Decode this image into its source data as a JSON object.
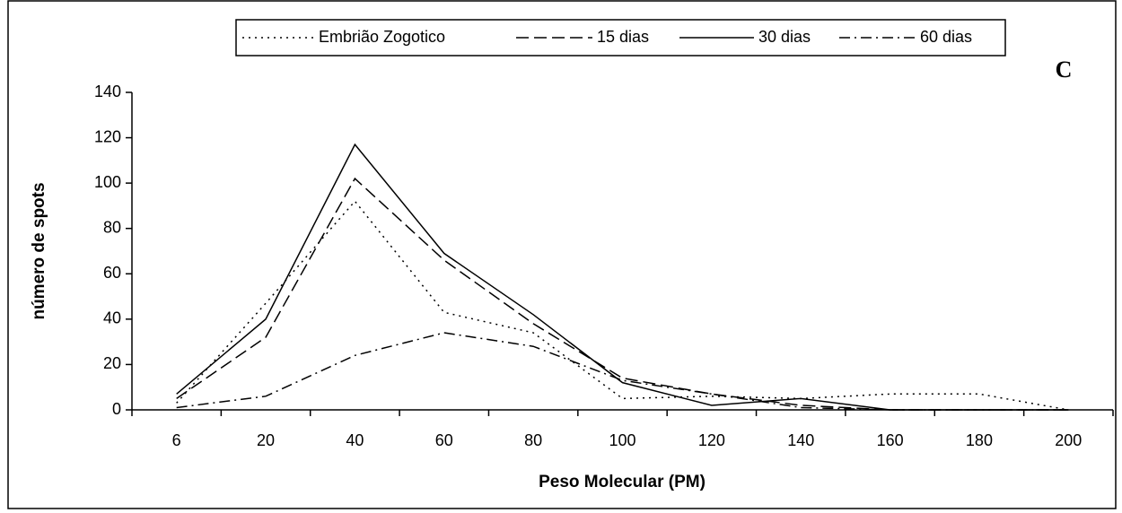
{
  "chart_data": {
    "type": "line",
    "annotation": "C",
    "x_label": "Peso Molecular (PM)",
    "y_label": "número de spots",
    "categories": [
      "6",
      "20",
      "40",
      "60",
      "80",
      "100",
      "120",
      "140",
      "160",
      "180",
      "200"
    ],
    "ylim": [
      0,
      140
    ],
    "yticks": [
      0,
      20,
      40,
      60,
      80,
      100,
      120,
      140
    ],
    "grid": false,
    "legend": "top",
    "series": [
      {
        "name": "Embrião Zogotico",
        "color": "#000000",
        "dash": "dotted",
        "values": [
          3,
          47,
          92,
          43,
          34,
          5,
          6,
          5,
          7,
          7,
          0
        ]
      },
      {
        "name": "15 dias",
        "color": "#000000",
        "dash": "dashed",
        "values": [
          5,
          32,
          102,
          66,
          38,
          14,
          7,
          2,
          0,
          0,
          0
        ]
      },
      {
        "name": "30 dias",
        "color": "#000000",
        "dash": "solid",
        "values": [
          7,
          40,
          117,
          69,
          42,
          12,
          2,
          5,
          0,
          0,
          0
        ]
      },
      {
        "name": "60 dias",
        "color": "#000000",
        "dash": "dashdot",
        "values": [
          1,
          6,
          24,
          34,
          28,
          13,
          7,
          1,
          0,
          0,
          0
        ]
      }
    ]
  }
}
